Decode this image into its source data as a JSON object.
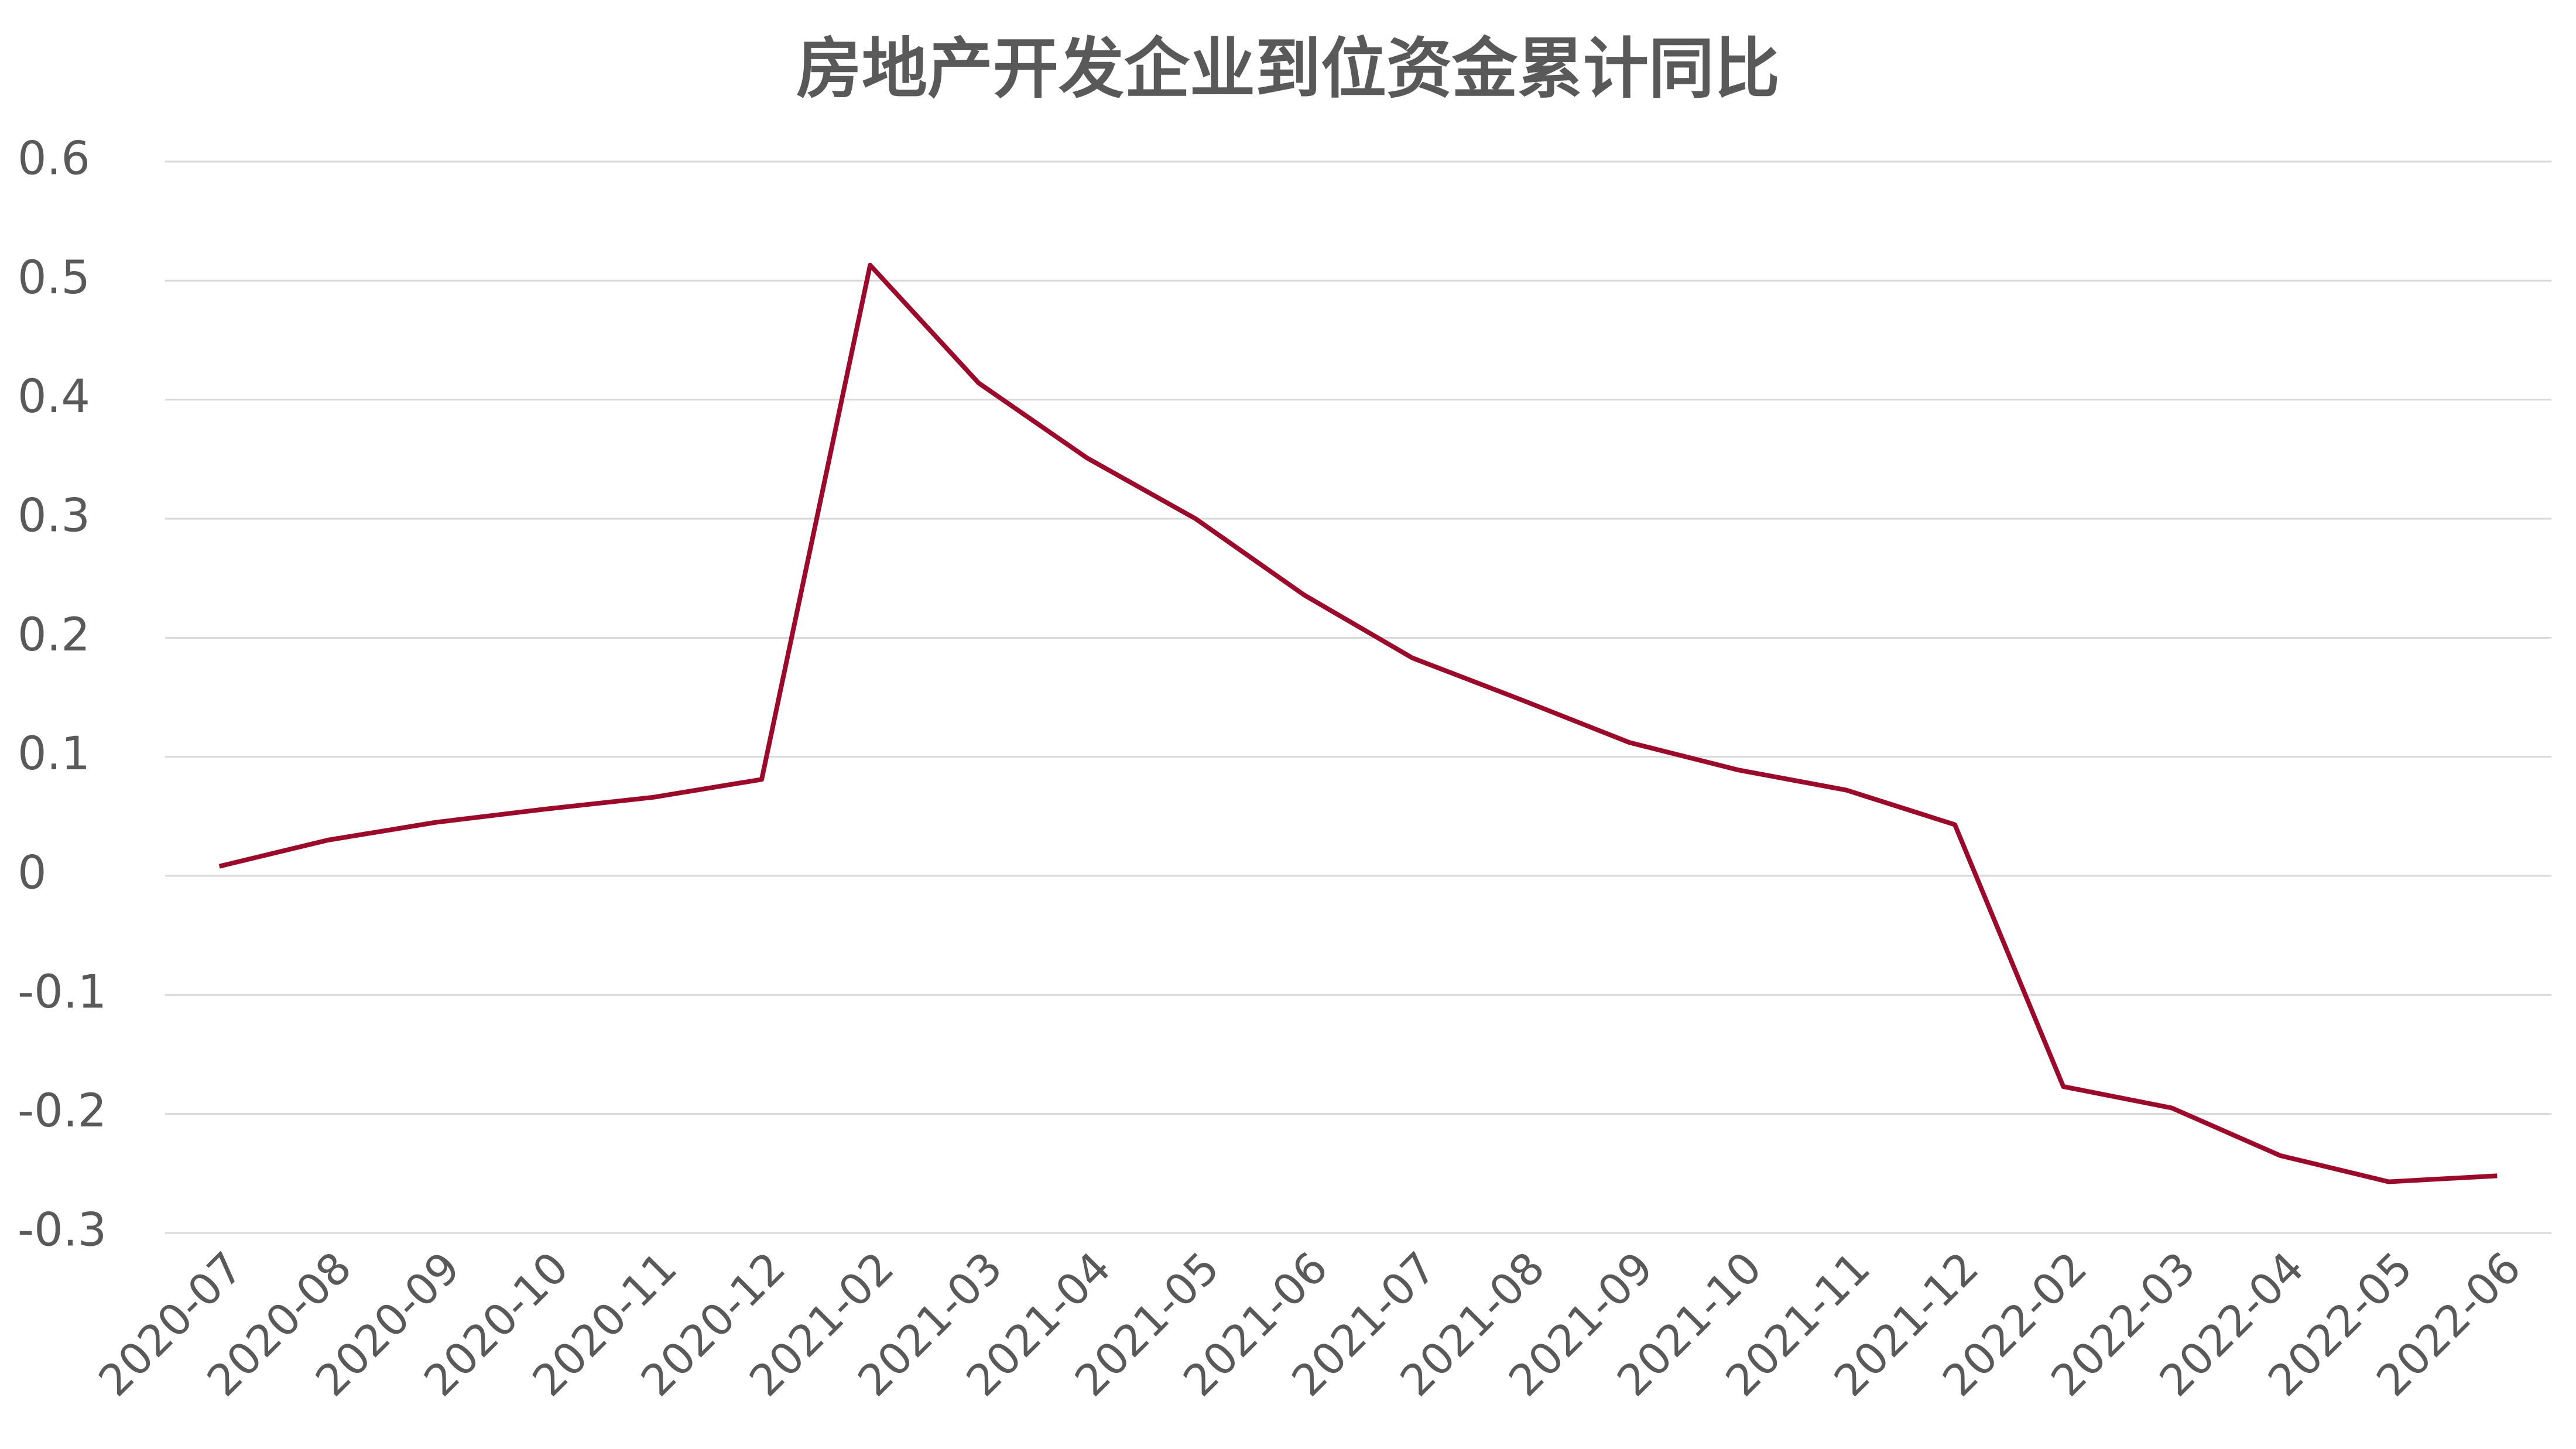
{
  "chart_data": {
    "type": "line",
    "title": "房地产开发企业到位资金累计同比",
    "categories": [
      "2020-07",
      "2020-08",
      "2020-09",
      "2020-10",
      "2020-11",
      "2020-12",
      "2021-02",
      "2021-03",
      "2021-04",
      "2021-05",
      "2021-06",
      "2021-07",
      "2021-08",
      "2021-09",
      "2021-10",
      "2021-11",
      "2021-12",
      "2022-02",
      "2022-03",
      "2022-04",
      "2022-05",
      "2022-06"
    ],
    "values": [
      0.008,
      0.03,
      0.045,
      0.056,
      0.066,
      0.081,
      0.513,
      0.414,
      0.351,
      0.3,
      0.236,
      0.183,
      0.148,
      0.112,
      0.089,
      0.072,
      0.043,
      -0.177,
      -0.195,
      -0.235,
      -0.257,
      -0.252
    ],
    "color": "#9b0a2a",
    "ylim": [
      -0.3,
      0.6
    ],
    "yticks": [
      -0.3,
      -0.2,
      -0.1,
      0,
      0.1,
      0.2,
      0.3,
      0.4,
      0.5,
      0.6
    ],
    "grid": true
  }
}
